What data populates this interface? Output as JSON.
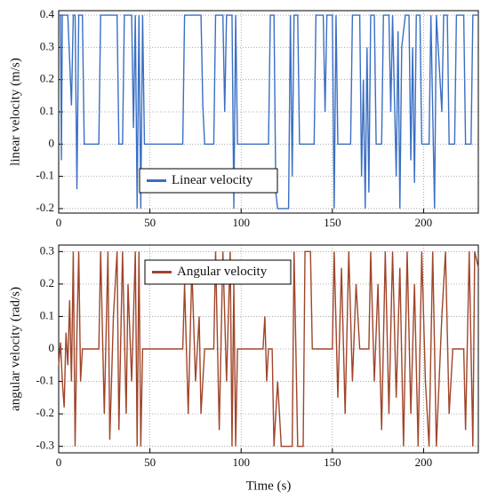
{
  "chart_data": [
    {
      "type": "line",
      "ylabel": "linear velocity (m/s)",
      "x": [
        0,
        1,
        1.5,
        2,
        5,
        7,
        8,
        9,
        10,
        11,
        13,
        14,
        22,
        23,
        32,
        33,
        35,
        36,
        40,
        41,
        42,
        43,
        44,
        45,
        46,
        47,
        68,
        69,
        78,
        79,
        80,
        85,
        86,
        90,
        91,
        92,
        95,
        96,
        97,
        98,
        115,
        116,
        118,
        119,
        120,
        126,
        127,
        128,
        129,
        131,
        132,
        140,
        141,
        145,
        146,
        147,
        150,
        151,
        152,
        153,
        160,
        161,
        165,
        166,
        167,
        168,
        169,
        170,
        171,
        173,
        174,
        177,
        178,
        181,
        182,
        183,
        185,
        186,
        187,
        188,
        190,
        192,
        193,
        194,
        195,
        196,
        198,
        199,
        203,
        204,
        206,
        207,
        210,
        211,
        213,
        214,
        217,
        218,
        222,
        223,
        226,
        227,
        230
      ],
      "series": [
        {
          "name": "Linear velocity",
          "color": "#3a6fc4",
          "values": [
            0.4,
            0.4,
            -0.05,
            0.4,
            0.4,
            0.12,
            0.4,
            0.4,
            -0.14,
            0.4,
            0.4,
            0,
            0,
            0.4,
            0.4,
            0,
            0,
            0.4,
            0.4,
            0.05,
            0.4,
            -0.2,
            0.4,
            -0.2,
            0.4,
            0,
            0,
            0.4,
            0.4,
            0.12,
            0,
            0,
            0.4,
            0.4,
            0.1,
            0.4,
            0.4,
            -0.2,
            0.4,
            0,
            0,
            0.4,
            0.4,
            -0.15,
            -0.2,
            -0.2,
            0.4,
            -0.1,
            0.4,
            0.4,
            0,
            0,
            0.4,
            0.4,
            0.1,
            0.4,
            0.4,
            -0.2,
            0.4,
            0,
            0,
            0.4,
            0.4,
            -0.1,
            0.2,
            -0.2,
            0.3,
            -0.15,
            0.4,
            0.4,
            0,
            0,
            0.4,
            0.4,
            0.1,
            0.4,
            -0.1,
            0.35,
            -0.2,
            0.3,
            0.4,
            0.4,
            -0.05,
            0.3,
            -0.12,
            0.4,
            0.4,
            0,
            0,
            0.4,
            -0.2,
            0.4,
            0.1,
            0.4,
            0.4,
            0,
            0,
            0.4,
            0.4,
            0,
            0,
            0.4,
            0.4
          ]
        }
      ],
      "xlim": [
        0,
        230
      ],
      "ylim": [
        -0.214,
        0.414
      ],
      "xticks": [
        0,
        50,
        100,
        150,
        200
      ],
      "yticks": [
        -0.2,
        -0.1,
        0,
        0.1,
        0.2,
        0.3,
        0.4
      ],
      "grid": true
    },
    {
      "type": "line",
      "ylabel": "angular velocity (rad/s)",
      "xlabel": "Time (s)",
      "x": [
        0,
        1,
        2,
        3,
        4,
        5,
        6,
        7,
        8,
        9,
        10,
        11,
        12,
        13,
        22,
        23,
        25,
        27,
        28,
        30,
        32,
        33,
        35,
        37,
        38,
        40,
        42,
        43,
        44,
        45,
        46,
        68,
        69,
        71,
        73,
        75,
        77,
        78,
        80,
        85,
        86,
        88,
        90,
        92,
        94,
        95,
        96,
        97,
        98,
        112,
        113,
        114,
        115,
        117,
        118,
        120,
        122,
        128,
        129,
        131,
        134,
        135,
        138,
        139,
        150,
        151,
        153,
        155,
        157,
        159,
        161,
        163,
        165,
        170,
        171,
        173,
        175,
        177,
        179,
        181,
        183,
        185,
        187,
        189,
        191,
        193,
        195,
        197,
        199,
        201,
        203,
        205,
        207,
        210,
        212,
        214,
        216,
        222,
        223,
        225,
        227,
        228,
        230
      ],
      "series": [
        {
          "name": "Angular velocity",
          "color": "#a0452a",
          "values": [
            -0.05,
            0.02,
            -0.1,
            -0.18,
            0.05,
            -0.05,
            0.15,
            -0.1,
            0.3,
            -0.3,
            0.05,
            0.3,
            -0.1,
            0,
            0,
            0.3,
            -0.2,
            0.3,
            -0.28,
            0.1,
            0.3,
            -0.25,
            0.3,
            -0.2,
            0.2,
            -0.1,
            0.3,
            -0.3,
            0.3,
            -0.3,
            0,
            0,
            0.2,
            -0.2,
            0.25,
            -0.1,
            0.1,
            -0.2,
            0,
            0,
            0.3,
            -0.25,
            0.3,
            -0.1,
            0.3,
            -0.3,
            0.2,
            -0.3,
            0,
            0,
            0.1,
            -0.1,
            0,
            0,
            -0.3,
            -0.1,
            -0.3,
            -0.3,
            0.3,
            -0.3,
            -0.3,
            0.3,
            0.3,
            0,
            0,
            0.3,
            -0.15,
            0.25,
            -0.2,
            0.3,
            -0.1,
            0.2,
            0,
            0,
            0.3,
            -0.1,
            0.2,
            -0.25,
            0.3,
            -0.2,
            0.3,
            -0.15,
            0.25,
            -0.3,
            0.3,
            -0.2,
            0.2,
            -0.3,
            0.3,
            -0.1,
            -0.3,
            0.3,
            -0.3,
            0.1,
            0.3,
            -0.2,
            0,
            0,
            -0.25,
            0.3,
            -0.3,
            0.3,
            0.25
          ]
        }
      ],
      "xlim": [
        0,
        230
      ],
      "ylim": [
        -0.32,
        0.32
      ],
      "xticks": [
        0,
        50,
        100,
        150,
        200
      ],
      "yticks": [
        -0.3,
        -0.2,
        -0.1,
        0,
        0.1,
        0.2,
        0.3
      ],
      "grid": true
    }
  ]
}
